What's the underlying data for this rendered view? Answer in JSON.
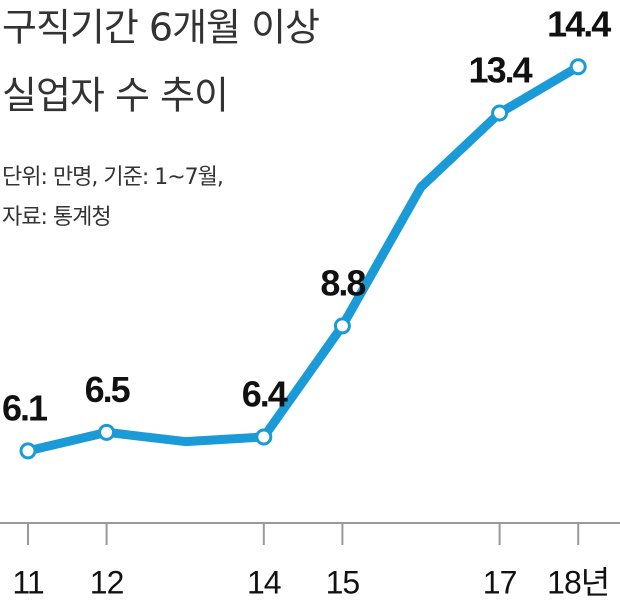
{
  "chart_data": {
    "type": "line",
    "title": [
      "구직기간 6개월 이상",
      "실업자 수 추이"
    ],
    "notes": [
      "단위: 만명, 기준: 1~7월,",
      "자료: 통계청"
    ],
    "categories": [
      "11",
      "12",
      null,
      "14",
      "15",
      null,
      "17",
      "18년"
    ],
    "values": [
      6.1,
      6.5,
      6.3,
      6.4,
      8.8,
      11.8,
      13.4,
      14.4
    ],
    "color": "#1a9ad6",
    "ylim": [
      4,
      15
    ]
  }
}
